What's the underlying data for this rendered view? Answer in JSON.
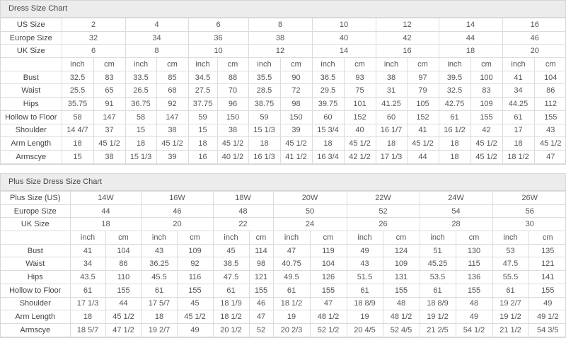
{
  "charts": [
    {
      "title": "Dress Size Chart",
      "size_rows": [
        {
          "label": "US Size",
          "values": [
            "2",
            "4",
            "6",
            "8",
            "10",
            "12",
            "14",
            "16"
          ]
        },
        {
          "label": "Europe Size",
          "values": [
            "32",
            "34",
            "36",
            "38",
            "40",
            "42",
            "44",
            "46"
          ]
        },
        {
          "label": "UK Size",
          "values": [
            "6",
            "8",
            "10",
            "12",
            "14",
            "16",
            "18",
            "20"
          ]
        }
      ],
      "unit_labels": [
        "inch",
        "cm"
      ],
      "measure_rows": [
        {
          "label": "Bust",
          "values": [
            "32.5",
            "83",
            "33.5",
            "85",
            "34.5",
            "88",
            "35.5",
            "90",
            "36.5",
            "93",
            "38",
            "97",
            "39.5",
            "100",
            "41",
            "104"
          ]
        },
        {
          "label": "Waist",
          "values": [
            "25.5",
            "65",
            "26.5",
            "68",
            "27.5",
            "70",
            "28.5",
            "72",
            "29.5",
            "75",
            "31",
            "79",
            "32.5",
            "83",
            "34",
            "86"
          ]
        },
        {
          "label": "Hips",
          "values": [
            "35.75",
            "91",
            "36.75",
            "92",
            "37.75",
            "96",
            "38.75",
            "98",
            "39.75",
            "101",
            "41.25",
            "105",
            "42.75",
            "109",
            "44.25",
            "112"
          ]
        },
        {
          "label": "Hollow to Floor",
          "values": [
            "58",
            "147",
            "58",
            "147",
            "59",
            "150",
            "59",
            "150",
            "60",
            "152",
            "60",
            "152",
            "61",
            "155",
            "61",
            "155"
          ]
        },
        {
          "label": "Shoulder",
          "values": [
            "14 4/7",
            "37",
            "15",
            "38",
            "15",
            "38",
            "15 1/3",
            "39",
            "15 3/4",
            "40",
            "16 1/7",
            "41",
            "16 1/2",
            "42",
            "17",
            "43"
          ]
        },
        {
          "label": "Arm Length",
          "values": [
            "18",
            "45 1/2",
            "18",
            "45 1/2",
            "18",
            "45 1/2",
            "18",
            "45 1/2",
            "18",
            "45 1/2",
            "18",
            "45 1/2",
            "18",
            "45 1/2",
            "18",
            "45 1/2"
          ]
        },
        {
          "label": "Armscye",
          "values": [
            "15",
            "38",
            "15 1/3",
            "39",
            "16",
            "40 1/2",
            "16 1/3",
            "41 1/2",
            "16 3/4",
            "42 1/2",
            "17 1/3",
            "44",
            "18",
            "45 1/2",
            "18 1/2",
            "47"
          ]
        }
      ]
    },
    {
      "title": "Plus Size Dress Size Chart",
      "size_rows": [
        {
          "label": "Plus Size (US)",
          "values": [
            "14W",
            "16W",
            "18W",
            "20W",
            "22W",
            "24W",
            "26W"
          ]
        },
        {
          "label": "Europe Size",
          "values": [
            "44",
            "46",
            "48",
            "50",
            "52",
            "54",
            "56"
          ]
        },
        {
          "label": "UK Size",
          "values": [
            "18",
            "20",
            "22",
            "24",
            "26",
            "28",
            "30"
          ]
        }
      ],
      "unit_labels": [
        "inch",
        "cm"
      ],
      "measure_rows": [
        {
          "label": "Bust",
          "values": [
            "41",
            "104",
            "43",
            "109",
            "45",
            "114",
            "47",
            "119",
            "49",
            "124",
            "51",
            "130",
            "53",
            "135"
          ]
        },
        {
          "label": "Waist",
          "values": [
            "34",
            "86",
            "36.25",
            "92",
            "38.5",
            "98",
            "40.75",
            "104",
            "43",
            "109",
            "45.25",
            "115",
            "47.5",
            "121"
          ]
        },
        {
          "label": "Hips",
          "values": [
            "43.5",
            "110",
            "45.5",
            "116",
            "47.5",
            "121",
            "49.5",
            "126",
            "51.5",
            "131",
            "53.5",
            "136",
            "55.5",
            "141"
          ]
        },
        {
          "label": "Hollow to Floor",
          "values": [
            "61",
            "155",
            "61",
            "155",
            "61",
            "155",
            "61",
            "155",
            "61",
            "155",
            "61",
            "155",
            "61",
            "155"
          ]
        },
        {
          "label": "Shoulder",
          "values": [
            "17 1/3",
            "44",
            "17 5/7",
            "45",
            "18 1/9",
            "46",
            "18 1/2",
            "47",
            "18 8/9",
            "48",
            "18 8/9",
            "48",
            "19 2/7",
            "49"
          ]
        },
        {
          "label": "Arm Length",
          "values": [
            "18",
            "45 1/2",
            "18",
            "45 1/2",
            "18 1/2",
            "47",
            "19",
            "48 1/2",
            "19",
            "48 1/2",
            "19 1/2",
            "49",
            "19 1/2",
            "49 1/2"
          ]
        },
        {
          "label": "Armscye",
          "values": [
            "18 5/7",
            "47 1/2",
            "19 2/7",
            "49",
            "20 1/2",
            "52",
            "20 2/3",
            "52 1/2",
            "20 4/5",
            "52 4/5",
            "21 2/5",
            "54 1/2",
            "21 1/2",
            "54 3/5"
          ]
        }
      ]
    }
  ]
}
